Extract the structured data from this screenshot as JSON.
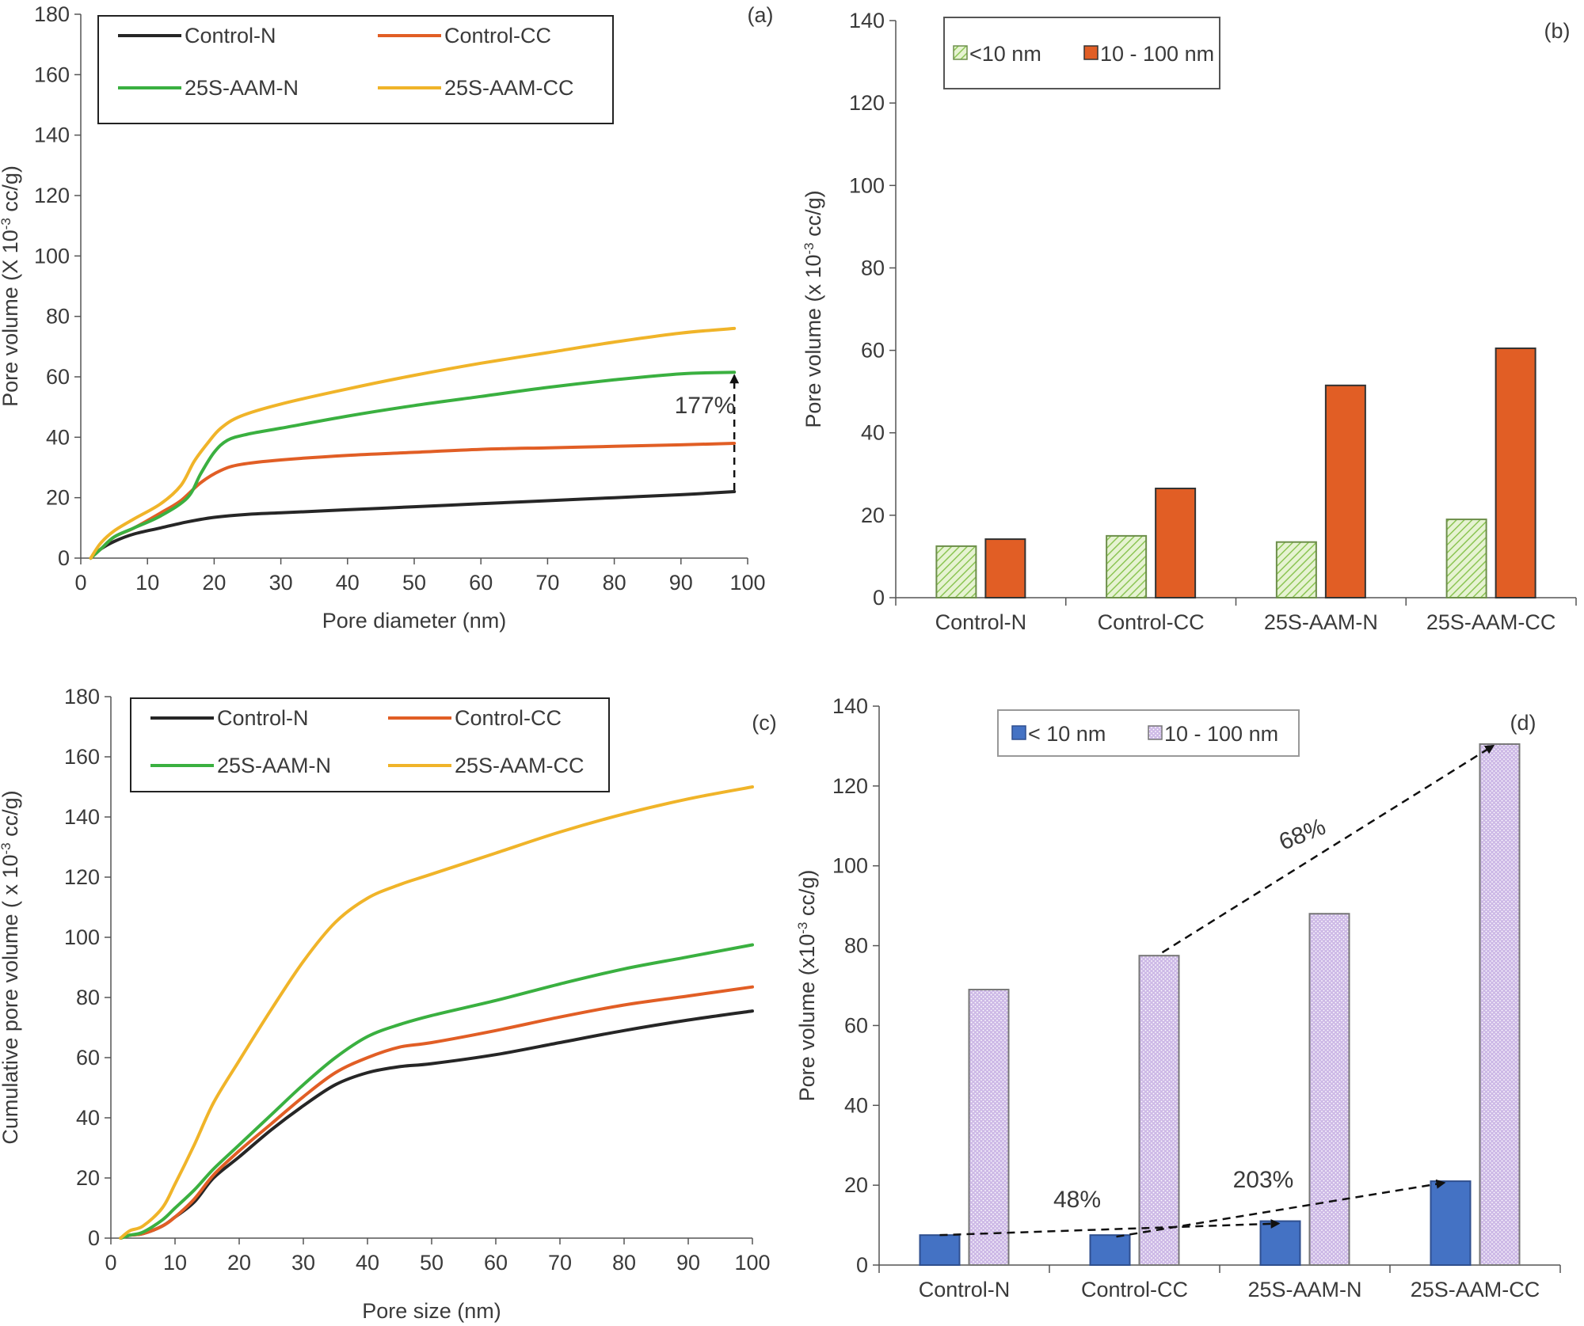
{
  "chart_data": [
    {
      "panel": "(a)",
      "type": "line",
      "xlabel": "Pore diameter (nm)",
      "ylabel_main": "Pore volume (X 10",
      "ylabel_sup": "-3",
      "ylabel_tail": " cc/g)",
      "xlim": [
        0,
        100
      ],
      "ylim": [
        0,
        180
      ],
      "xticks": [
        0,
        10,
        20,
        30,
        40,
        50,
        60,
        70,
        80,
        90,
        100
      ],
      "yticks": [
        0,
        20,
        40,
        60,
        80,
        100,
        120,
        140,
        160,
        180
      ],
      "legend": "top-left",
      "annotation": "177%",
      "series": [
        {
          "name": "Control-N",
          "color": "#262626",
          "x": [
            1.5,
            3,
            5,
            8,
            12,
            16,
            20,
            25,
            30,
            40,
            50,
            60,
            70,
            80,
            90,
            98
          ],
          "y": [
            0,
            3,
            5.5,
            8,
            10,
            12,
            13.5,
            14.5,
            15,
            16,
            17,
            18,
            19,
            20,
            21,
            22
          ]
        },
        {
          "name": "Control-CC",
          "color": "#e15e25",
          "x": [
            1.5,
            3,
            5,
            8,
            12,
            15,
            18,
            21,
            24,
            30,
            40,
            50,
            60,
            70,
            80,
            90,
            98
          ],
          "y": [
            0,
            3,
            7,
            10,
            15,
            19,
            25,
            29,
            31,
            32.5,
            34,
            35,
            36,
            36.5,
            37,
            37.5,
            38
          ]
        },
        {
          "name": "25S-AAM-N",
          "color": "#3ab040",
          "x": [
            1.5,
            3,
            5,
            8,
            12,
            16,
            18,
            20,
            22,
            25,
            30,
            40,
            50,
            60,
            70,
            80,
            90,
            98
          ],
          "y": [
            0,
            3,
            7,
            10,
            14,
            20,
            28,
            35,
            39,
            41,
            43,
            47,
            50.5,
            53.5,
            56.5,
            59,
            61,
            61.5
          ]
        },
        {
          "name": "25S-AAM-CC",
          "color": "#f0b429",
          "x": [
            1.5,
            3,
            5,
            8,
            12,
            15,
            17,
            19,
            21,
            24,
            30,
            40,
            50,
            60,
            70,
            80,
            90,
            98
          ],
          "y": [
            0,
            5,
            9,
            13,
            18,
            24,
            32,
            38,
            43,
            47,
            51,
            56,
            60.5,
            64.5,
            68,
            71.5,
            74.5,
            76
          ]
        }
      ]
    },
    {
      "panel": "(b)",
      "type": "bar",
      "xlabel": "",
      "ylabel_main": "Pore volume (x 10",
      "ylabel_sup": "-3",
      "ylabel_tail": " cc/g)",
      "ylim": [
        0,
        140
      ],
      "yticks": [
        0,
        20,
        40,
        60,
        80,
        100,
        120,
        140
      ],
      "legend": "top-left",
      "categories": [
        "Control-N",
        "Control-CC",
        "25S-AAM-N",
        "25S-AAM-CC"
      ],
      "series": [
        {
          "name": "<10 nm",
          "color": "#c6e39a",
          "values": [
            12.5,
            15,
            13.5,
            19
          ]
        },
        {
          "name": "10 - 100 nm",
          "color": "#e15e25",
          "values": [
            14.2,
            26.5,
            51.5,
            60.5
          ]
        }
      ]
    },
    {
      "panel": "(c)",
      "type": "line",
      "xlabel": "Pore size (nm)",
      "ylabel_main": "Cumulative pore volume ( x 10",
      "ylabel_sup": "-3",
      "ylabel_tail": " cc/g)",
      "xlim": [
        0,
        100
      ],
      "ylim": [
        0,
        180
      ],
      "xticks": [
        0,
        10,
        20,
        30,
        40,
        50,
        60,
        70,
        80,
        90,
        100
      ],
      "yticks": [
        0,
        20,
        40,
        60,
        80,
        100,
        120,
        140,
        160,
        180
      ],
      "legend": "top-left",
      "series": [
        {
          "name": "Control-N",
          "color": "#262626",
          "x": [
            1.5,
            3,
            5,
            8,
            10,
            13,
            16,
            20,
            25,
            30,
            35,
            40,
            45,
            50,
            60,
            70,
            80,
            90,
            100
          ],
          "y": [
            0,
            1,
            1.5,
            4,
            7,
            12,
            20,
            27,
            36,
            44,
            51,
            55,
            57,
            58,
            61,
            65,
            69,
            72.5,
            75.5
          ]
        },
        {
          "name": "Control-CC",
          "color": "#e15e25",
          "x": [
            1.5,
            3,
            5,
            8,
            10,
            13,
            16,
            20,
            25,
            30,
            35,
            40,
            45,
            50,
            60,
            70,
            80,
            90,
            100
          ],
          "y": [
            0,
            1,
            1.5,
            4,
            7,
            13,
            21,
            29,
            38,
            47,
            55,
            60,
            63.5,
            65,
            69,
            73.5,
            77.5,
            80.5,
            83.5
          ]
        },
        {
          "name": "25S-AAM-N",
          "color": "#3ab040",
          "x": [
            1.5,
            3,
            5,
            8,
            10,
            13,
            16,
            20,
            25,
            30,
            35,
            40,
            45,
            50,
            60,
            70,
            80,
            90,
            100
          ],
          "y": [
            0,
            1,
            2,
            6,
            10,
            16,
            23,
            31,
            41,
            51,
            60,
            67,
            71,
            74,
            79,
            84.5,
            89.5,
            93.5,
            97.5
          ]
        },
        {
          "name": "25S-AAM-CC",
          "color": "#f0b429",
          "x": [
            1.5,
            3,
            5,
            8,
            10,
            13,
            16,
            20,
            25,
            30,
            35,
            40,
            45,
            50,
            60,
            70,
            80,
            90,
            100
          ],
          "y": [
            0,
            2.5,
            4,
            10,
            18,
            31,
            45,
            59,
            76,
            92,
            105,
            113,
            117.5,
            121,
            128,
            135,
            141,
            146,
            150
          ]
        }
      ]
    },
    {
      "panel": "(d)",
      "type": "bar",
      "xlabel": "",
      "ylabel_main": "Pore volume (x10",
      "ylabel_sup": "-3",
      "ylabel_tail": " cc/g)",
      "ylim": [
        0,
        140
      ],
      "yticks": [
        0,
        20,
        40,
        60,
        80,
        100,
        120,
        140
      ],
      "legend": "top-left",
      "categories": [
        "Control-N",
        "Control-CC",
        "25S-AAM-N",
        "25S-AAM-CC"
      ],
      "series": [
        {
          "name": "< 10 nm",
          "color": "#4472c4",
          "values": [
            7.5,
            7.5,
            11,
            21
          ]
        },
        {
          "name": "10 - 100 nm",
          "color": "#c8b6e0",
          "values": [
            69,
            77.5,
            88,
            130.5
          ]
        }
      ],
      "annotations": [
        "68%",
        "48%",
        "203%"
      ]
    }
  ]
}
